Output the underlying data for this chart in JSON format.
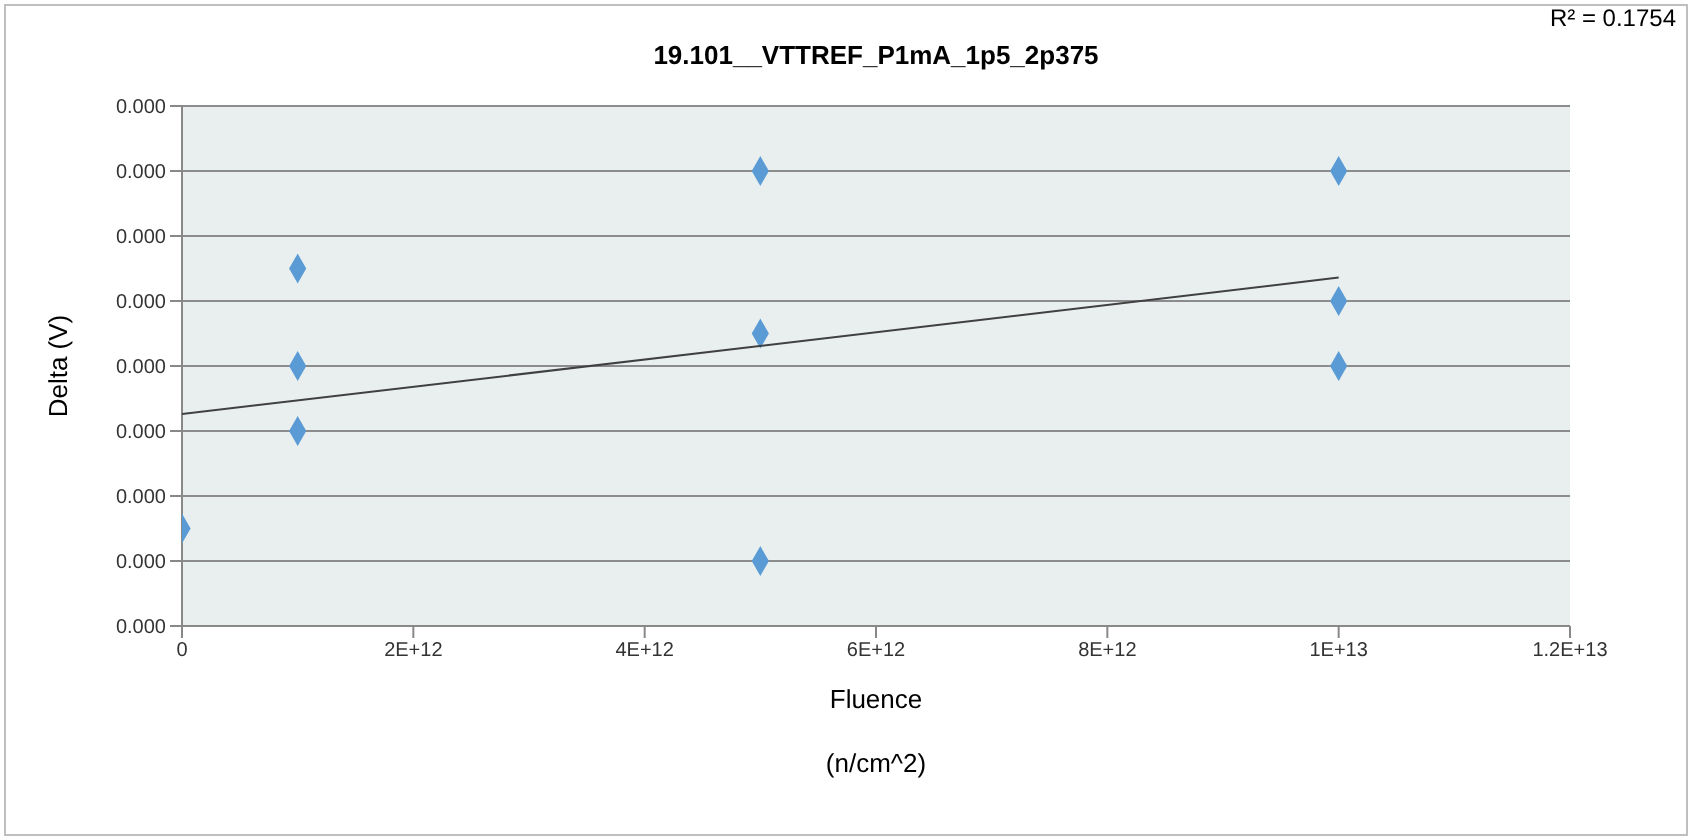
{
  "chart_data": {
    "type": "scatter",
    "title": "19.101__VTTREF_P1mA_1p5_2p375",
    "xlabel": "Fluence",
    "ylabel": "Delta (V)",
    "annotations": [
      "R² = 0.1754",
      "(n/cm^2)"
    ],
    "series": [
      {
        "color": "#5b9bd5",
        "marker": "diamond",
        "x": [
          0,
          1000000000000.0,
          1000000000000.0,
          1000000000000.0,
          5000000000000.0,
          5000000000000.0,
          5000000000000.0,
          10000000000000.0,
          10000000000000.0,
          10000000000000.0
        ],
        "values": [
          7.5e-05,
          0.000275,
          0.0002,
          0.00015,
          0.00035,
          0.000225,
          5e-05,
          0.00035,
          0.00025,
          0.0002
        ]
      },
      {
        "type": "line",
        "color": "#404040",
        "marker": "none",
        "x": [
          0,
          10000000000000.0
        ],
        "values": [
          0.000163,
          0.000268
        ]
      }
    ],
    "xlim": [
      0,
      12000000000000.0
    ],
    "xticks": [
      0,
      {
        "value": 2000000000000.0,
        "label": "2E+12"
      },
      {
        "value": 4000000000000.0,
        "label": "4E+12"
      },
      {
        "value": 6000000000000.0,
        "label": "6E+12"
      },
      {
        "value": 8000000000000.0,
        "label": "8E+12"
      },
      {
        "value": 10000000000000.0,
        "label": "1E+13"
      },
      {
        "value": 12000000000000.0,
        "label": "1.2E+13"
      }
    ],
    "ylim": [
      0,
      0.0004
    ],
    "yticks": [
      {
        "value": 0,
        "label": "0.000"
      },
      {
        "value": 5e-05,
        "label": "0.000"
      },
      {
        "value": 0.0001,
        "label": "0.000"
      },
      {
        "value": 0.00015,
        "label": "0.000"
      },
      {
        "value": 0.0002,
        "label": "0.000"
      },
      {
        "value": 0.00025,
        "label": "0.000"
      },
      {
        "value": 0.0003,
        "label": "0.000"
      },
      {
        "value": 0.00035,
        "label": "0.000"
      },
      {
        "value": 0.0004,
        "label": "0.000"
      }
    ],
    "grid": "y"
  }
}
